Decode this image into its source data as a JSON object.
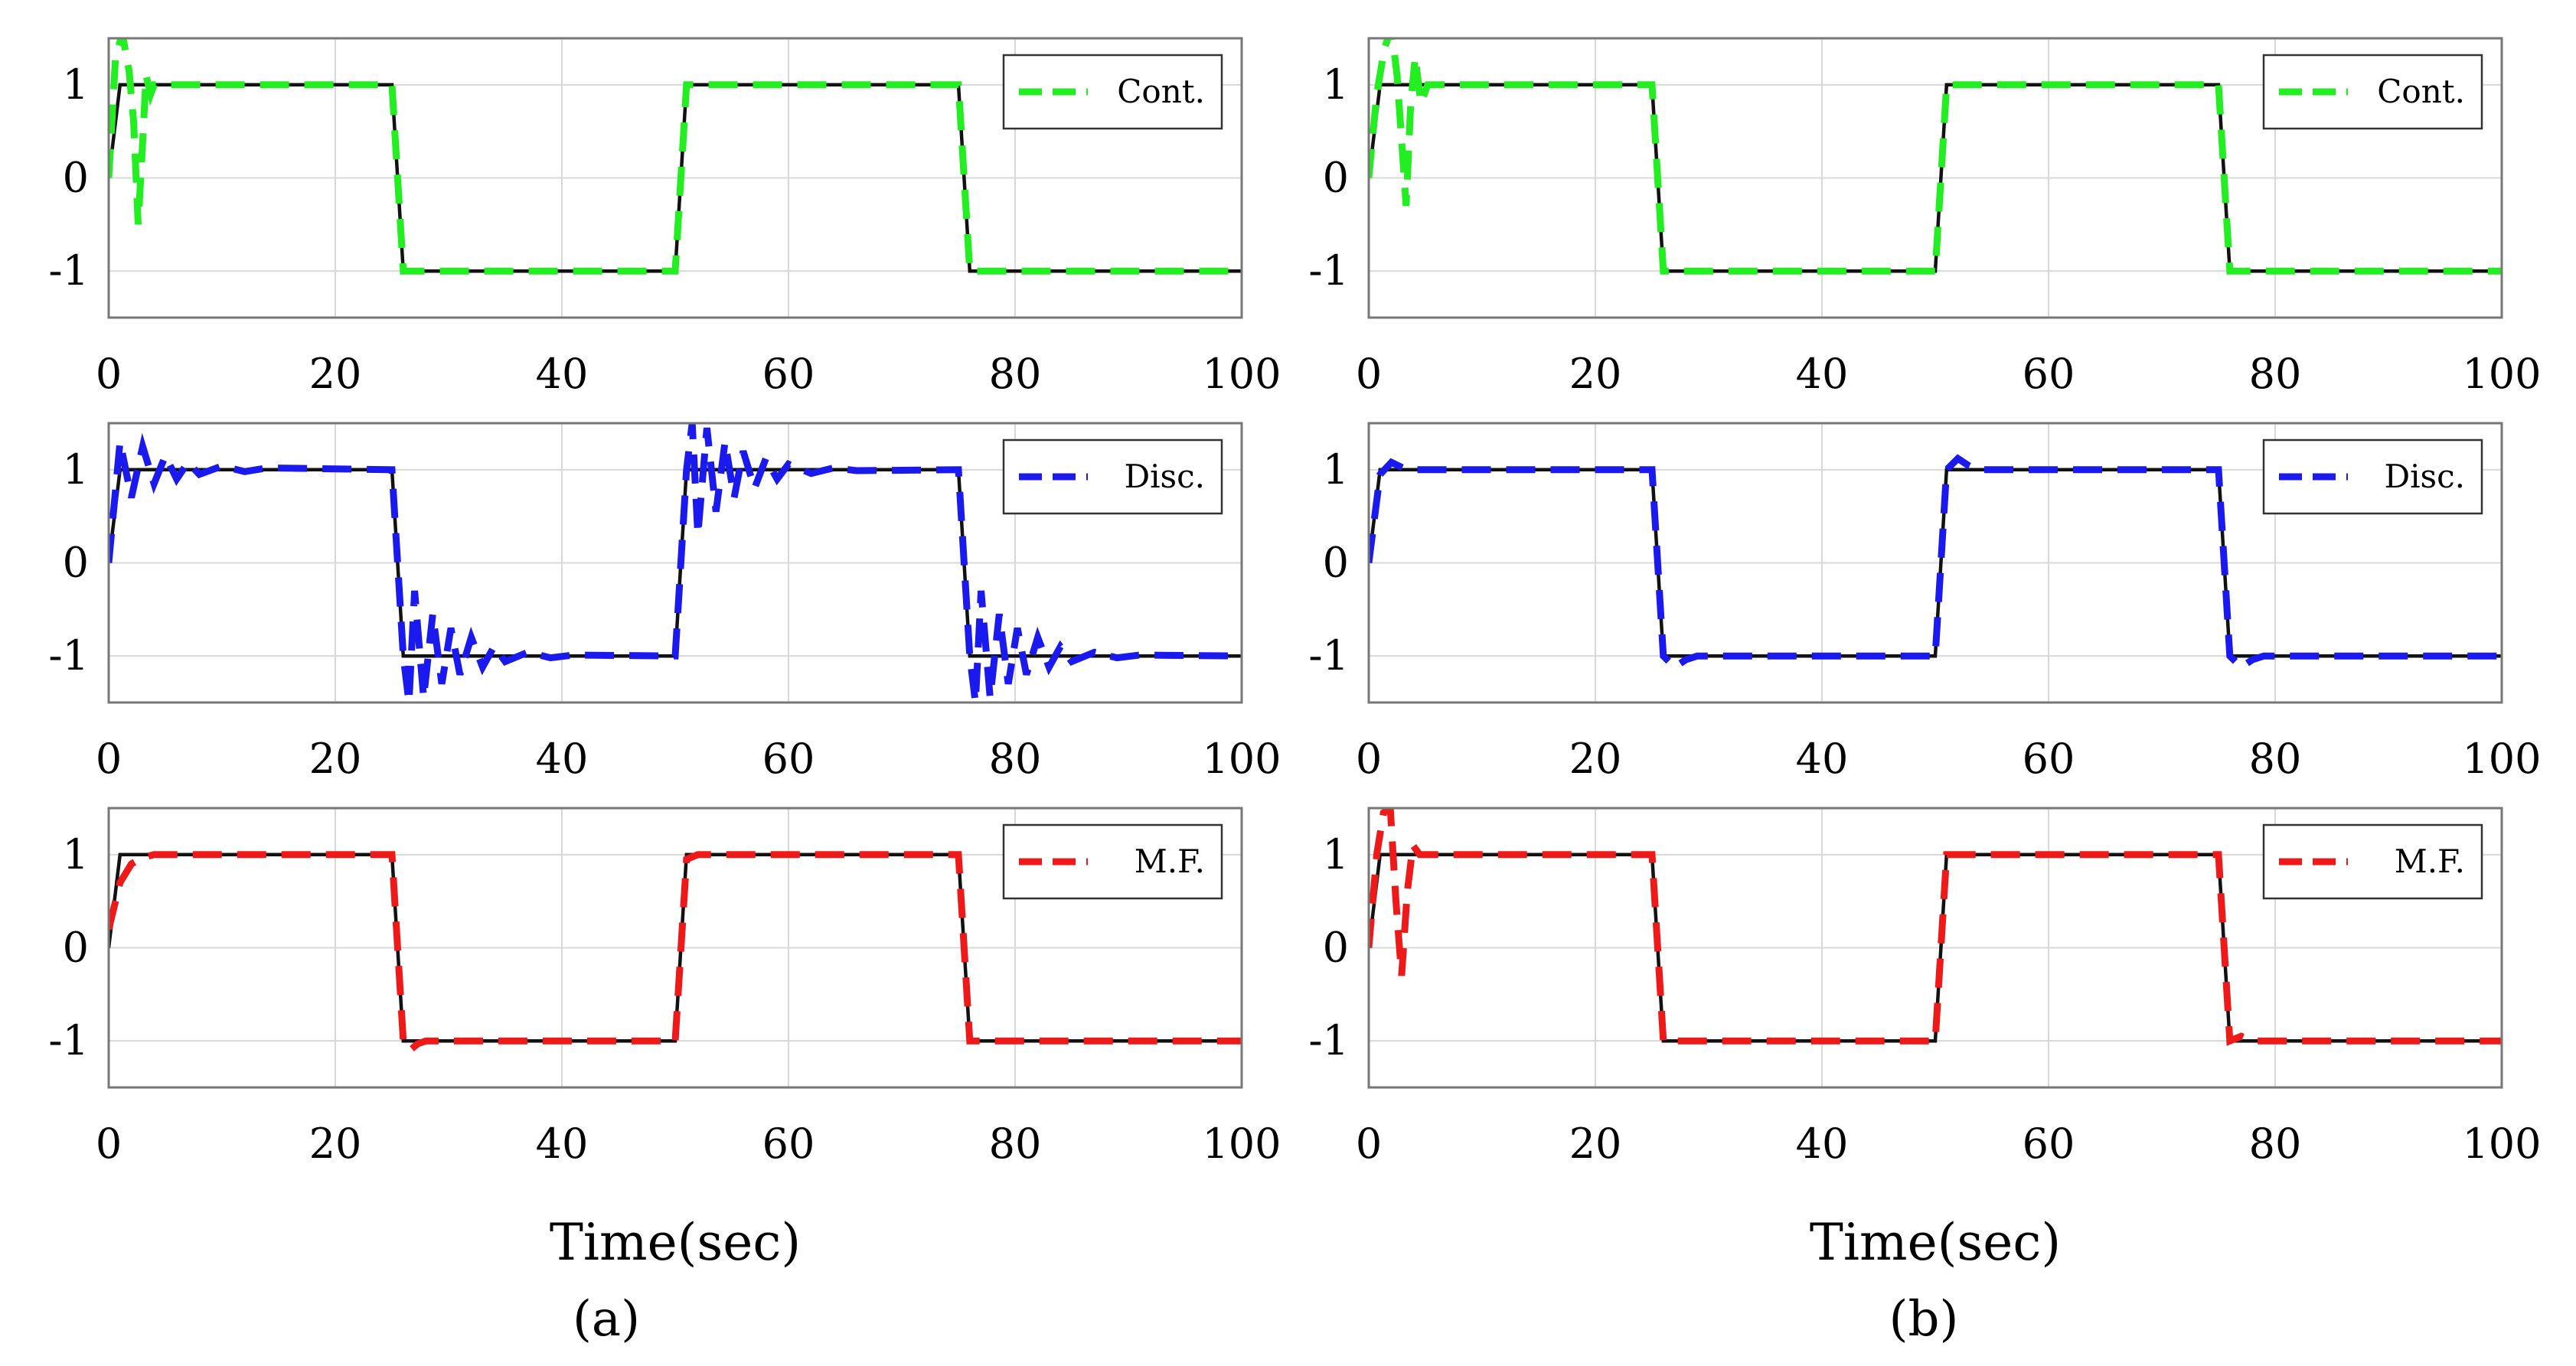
{
  "chart_data": [
    {
      "type": "line",
      "panel": "a",
      "row": 0,
      "xlim": [
        0,
        100
      ],
      "ylim": [
        -1.5,
        1.5
      ],
      "xticks": [
        0,
        20,
        40,
        60,
        80,
        100
      ],
      "yticks": [
        1,
        0,
        -1
      ],
      "grid": true,
      "legend_position": "top-right",
      "xlabel": "",
      "reference": {
        "x": [
          0,
          1,
          25,
          26,
          50,
          51,
          75,
          76,
          100
        ],
        "y": [
          0,
          1,
          1,
          -1,
          -1,
          1,
          1,
          -1,
          -1
        ]
      },
      "series": [
        {
          "name": "Cont.",
          "color": "#22ee22",
          "x": [
            0,
            0.6,
            1.2,
            1.8,
            2.2,
            2.6,
            3.0,
            3.3,
            3.7,
            4,
            25,
            26,
            50,
            51,
            75,
            76,
            100
          ],
          "y": [
            0,
            1.3,
            1.55,
            1.15,
            0.6,
            -0.5,
            0.4,
            1.1,
            0.9,
            1,
            1,
            -1,
            -1,
            1,
            1,
            -1,
            -1
          ]
        }
      ]
    },
    {
      "type": "line",
      "panel": "a",
      "row": 1,
      "xlim": [
        0,
        100
      ],
      "ylim": [
        -1.5,
        1.5
      ],
      "xticks": [
        0,
        20,
        40,
        60,
        80,
        100
      ],
      "yticks": [
        1,
        0,
        -1
      ],
      "grid": true,
      "legend_position": "top-right",
      "xlabel": "",
      "reference": {
        "x": [
          0,
          1,
          25,
          26,
          50,
          51,
          75,
          76,
          100
        ],
        "y": [
          0,
          1,
          1,
          -1,
          -1,
          1,
          1,
          -1,
          -1
        ]
      },
      "series": [
        {
          "name": "Disc.",
          "color": "#1a1aee",
          "x": [
            0,
            1,
            2,
            3,
            4,
            5,
            6,
            7,
            8,
            10,
            12,
            14,
            25,
            26,
            26.5,
            27,
            27.8,
            28.6,
            29.4,
            30.2,
            31,
            32,
            33,
            34,
            35,
            37,
            39,
            41,
            50,
            51,
            51.5,
            52,
            52.8,
            53.6,
            54.4,
            55.2,
            56,
            57,
            58,
            59,
            60,
            62,
            64,
            66,
            75,
            76,
            76.5,
            77,
            77.8,
            78.6,
            79.4,
            80.2,
            81,
            82,
            83,
            84,
            85,
            87,
            89,
            91,
            100
          ],
          "y": [
            0,
            1.3,
            0.7,
            1.25,
            0.85,
            1.15,
            0.9,
            1.08,
            0.95,
            1.04,
            0.98,
            1.02,
            1,
            -1,
            -1.5,
            -0.3,
            -1.45,
            -0.55,
            -1.3,
            -0.7,
            -1.2,
            -0.8,
            -1.12,
            -0.9,
            -1.06,
            -0.96,
            -1.02,
            -0.99,
            -1,
            1,
            1.5,
            0.3,
            1.45,
            0.55,
            1.3,
            0.7,
            1.2,
            0.8,
            1.12,
            0.9,
            1.06,
            0.96,
            1.02,
            0.99,
            1,
            -1,
            -1.5,
            -0.3,
            -1.45,
            -0.55,
            -1.3,
            -0.7,
            -1.2,
            -0.8,
            -1.12,
            -0.9,
            -1.06,
            -0.96,
            -1.02,
            -0.99,
            -1
          ]
        }
      ]
    },
    {
      "type": "line",
      "panel": "a",
      "row": 2,
      "xlim": [
        0,
        100
      ],
      "ylim": [
        -1.5,
        1.5
      ],
      "xticks": [
        0,
        20,
        40,
        60,
        80,
        100
      ],
      "yticks": [
        1,
        0,
        -1
      ],
      "grid": true,
      "legend_position": "top-right",
      "xlabel": "Time(sec)",
      "reference": {
        "x": [
          0,
          1,
          25,
          26,
          50,
          51,
          75,
          76,
          100
        ],
        "y": [
          0,
          1,
          1,
          -1,
          -1,
          1,
          1,
          -1,
          -1
        ]
      },
      "series": [
        {
          "name": "M.F.",
          "color": "#ee1a1a",
          "x": [
            0,
            1,
            2,
            3,
            4,
            25,
            26,
            26.6,
            27.3,
            28,
            50,
            51,
            52,
            75,
            76,
            100
          ],
          "y": [
            0.2,
            0.7,
            0.9,
            0.97,
            1,
            1,
            -1,
            -1.1,
            -1.03,
            -1,
            -1,
            0.95,
            1,
            1,
            -1,
            -1
          ]
        }
      ]
    },
    {
      "type": "line",
      "panel": "b",
      "row": 0,
      "xlim": [
        0,
        100
      ],
      "ylim": [
        -1.5,
        1.5
      ],
      "xticks": [
        0,
        20,
        40,
        60,
        80,
        100
      ],
      "yticks": [
        1,
        0,
        -1
      ],
      "grid": true,
      "legend_position": "top-right",
      "xlabel": "",
      "reference": {
        "x": [
          0,
          1,
          25,
          26,
          50,
          51,
          75,
          76,
          100
        ],
        "y": [
          0,
          1,
          1,
          -1,
          -1,
          1,
          1,
          -1,
          -1
        ]
      },
      "series": [
        {
          "name": "Cont.",
          "color": "#22ee22",
          "x": [
            0,
            0.7,
            1.4,
            2.0,
            2.5,
            2.9,
            3.3,
            3.7,
            4.1,
            4.6,
            5.2,
            25,
            26,
            50,
            51,
            75,
            76,
            100
          ],
          "y": [
            0,
            0.9,
            1.4,
            1.6,
            1.1,
            0.4,
            -0.3,
            0.8,
            1.3,
            0.8,
            1,
            1,
            -1,
            -1,
            1,
            1,
            -1,
            -1
          ]
        }
      ]
    },
    {
      "type": "line",
      "panel": "b",
      "row": 1,
      "xlim": [
        0,
        100
      ],
      "ylim": [
        -1.5,
        1.5
      ],
      "xticks": [
        0,
        20,
        40,
        60,
        80,
        100
      ],
      "yticks": [
        1,
        0,
        -1
      ],
      "grid": true,
      "legend_position": "top-right",
      "xlabel": "",
      "reference": {
        "x": [
          0,
          1,
          25,
          26,
          50,
          51,
          75,
          76,
          100
        ],
        "y": [
          0,
          1,
          1,
          -1,
          -1,
          1,
          1,
          -1,
          -1
        ]
      },
      "series": [
        {
          "name": "Disc.",
          "color": "#1a1aee",
          "x": [
            0,
            1,
            2,
            3,
            4,
            25,
            26,
            27,
            28,
            29,
            50,
            51,
            52,
            53,
            54,
            75,
            76,
            77,
            78,
            79,
            100
          ],
          "y": [
            0,
            0.95,
            1.08,
            1.02,
            1,
            1,
            -1,
            -1.12,
            -1.04,
            -1,
            -1,
            1,
            1.12,
            1.04,
            1,
            1,
            -1,
            -1.12,
            -1.04,
            -1,
            -1
          ]
        }
      ]
    },
    {
      "type": "line",
      "panel": "b",
      "row": 2,
      "xlim": [
        0,
        100
      ],
      "ylim": [
        -1.5,
        1.5
      ],
      "xticks": [
        0,
        20,
        40,
        60,
        80,
        100
      ],
      "yticks": [
        1,
        0,
        -1
      ],
      "grid": true,
      "legend_position": "top-right",
      "xlabel": "Time(sec)",
      "reference": {
        "x": [
          0,
          1,
          25,
          26,
          50,
          51,
          75,
          76,
          100
        ],
        "y": [
          0,
          1,
          1,
          -1,
          -1,
          1,
          1,
          -1,
          -1
        ]
      },
      "series": [
        {
          "name": "M.F.",
          "color": "#ee1a1a",
          "x": [
            0,
            0.7,
            1.3,
            1.9,
            2.4,
            2.9,
            3.4,
            3.9,
            4.5,
            25,
            26,
            50,
            51,
            75,
            76,
            77,
            78,
            100
          ],
          "y": [
            0,
            1,
            1.45,
            1.5,
            0.5,
            -0.3,
            0.6,
            1.1,
            1,
            1,
            -1,
            -1,
            1,
            1,
            -1,
            -0.95,
            -1,
            -1
          ]
        }
      ]
    }
  ],
  "panel_labels": [
    "(a)",
    "(b)"
  ],
  "colors": {
    "reference": "#111111",
    "grid": "#d8d8d8",
    "axes": "#777777"
  }
}
